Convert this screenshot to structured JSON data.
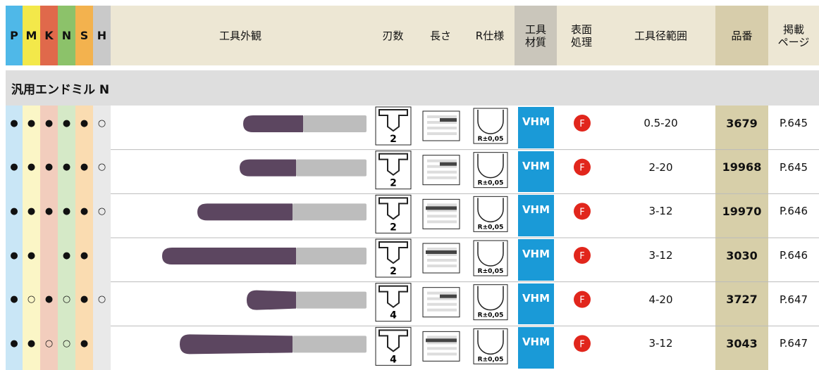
{
  "header": {
    "materials": [
      "P",
      "M",
      "K",
      "N",
      "S",
      "H"
    ],
    "appearance": "工具外観",
    "flutes": "刃数",
    "length": "長さ",
    "radius": "R仕様",
    "material": [
      "工具",
      "材質"
    ],
    "coating": [
      "表面",
      "処理"
    ],
    "range": "工具径範囲",
    "part": "品番",
    "page": [
      "掲載",
      "ページ"
    ]
  },
  "section": "汎用エンドミル N",
  "rows": [
    {
      "marks": [
        "●",
        "●",
        "●",
        "●",
        "●",
        "○"
      ],
      "flutes": 2,
      "radius": "R±0,05",
      "material": "VHM",
      "coating": "F",
      "range": "0.5-20",
      "part": 3679,
      "page": "P.645"
    },
    {
      "marks": [
        "●",
        "●",
        "●",
        "●",
        "●",
        "○"
      ],
      "flutes": 2,
      "radius": "R±0,05",
      "material": "VHM",
      "coating": "F",
      "range": "2-20",
      "part": 19968,
      "page": "P.645"
    },
    {
      "marks": [
        "●",
        "●",
        "●",
        "●",
        "●",
        "○"
      ],
      "flutes": 2,
      "radius": "R±0,05",
      "material": "VHM",
      "coating": "F",
      "range": "3-12",
      "part": 19970,
      "page": "P.646"
    },
    {
      "marks": [
        "●",
        "●",
        null,
        "●",
        "●",
        null
      ],
      "flutes": 2,
      "radius": "R±0,05",
      "material": "VHM",
      "coating": "F",
      "range": "3-12",
      "part": 3030,
      "page": "P.646"
    },
    {
      "marks": [
        "●",
        "○",
        "●",
        "○",
        "●",
        "○"
      ],
      "flutes": 4,
      "radius": "R±0,05",
      "material": "VHM",
      "coating": "F",
      "range": "4-20",
      "part": 3727,
      "page": "P.647"
    },
    {
      "marks": [
        "●",
        "●",
        "○",
        "○",
        "●",
        null
      ],
      "flutes": 4,
      "radius": "R±0,05",
      "material": "VHM",
      "coating": "F",
      "range": "3-12",
      "part": 3043,
      "page": "P.647"
    }
  ]
}
